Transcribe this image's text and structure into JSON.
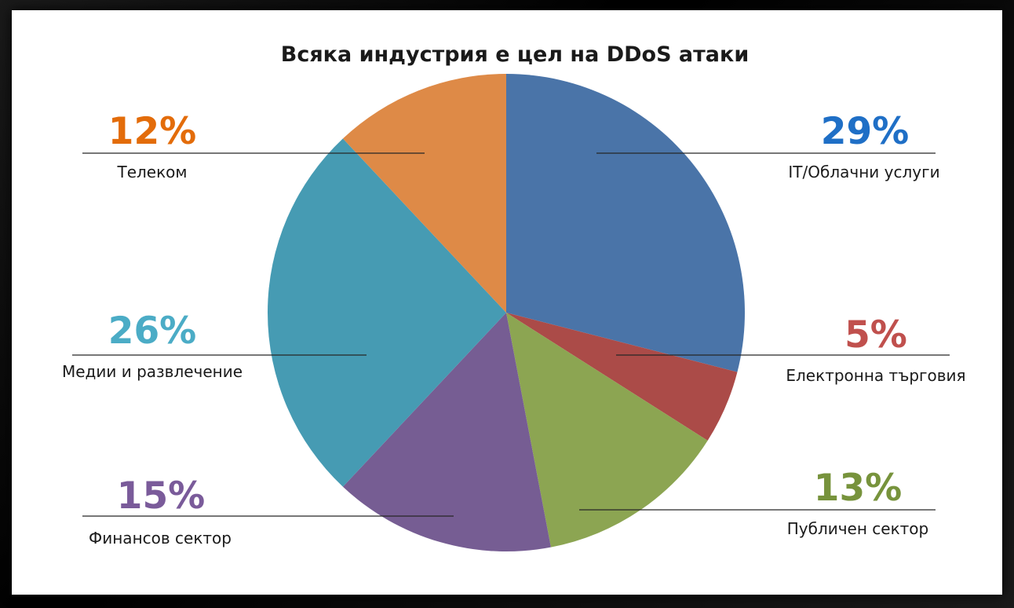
{
  "chart_data": {
    "type": "pie",
    "title": "Всяка индустрия е цел на DDoS атаки",
    "slices": [
      {
        "label": "IT/Облачни услуги",
        "value": 29,
        "value_label": "29%",
        "color": "#4a74a8",
        "label_color": "#1f6fc6"
      },
      {
        "label": "Електронна търговия",
        "value": 5,
        "value_label": "5%",
        "color": "#ab4b48",
        "label_color": "#c0504d"
      },
      {
        "label": "Публичен сектор",
        "value": 13,
        "value_label": "13%",
        "color": "#8ca552",
        "label_color": "#77933c"
      },
      {
        "label": "Финансов сектор",
        "value": 15,
        "value_label": "15%",
        "color": "#765d93",
        "label_color": "#7a5b9a"
      },
      {
        "label": "Медии и развлечение",
        "value": 26,
        "value_label": "26%",
        "color": "#469bb3",
        "label_color": "#4bacc6"
      },
      {
        "label": "Телеком",
        "value": 12,
        "value_label": "12%",
        "color": "#de8a47",
        "label_color": "#e36c0a"
      }
    ],
    "legend": "callout labels beside slices"
  }
}
